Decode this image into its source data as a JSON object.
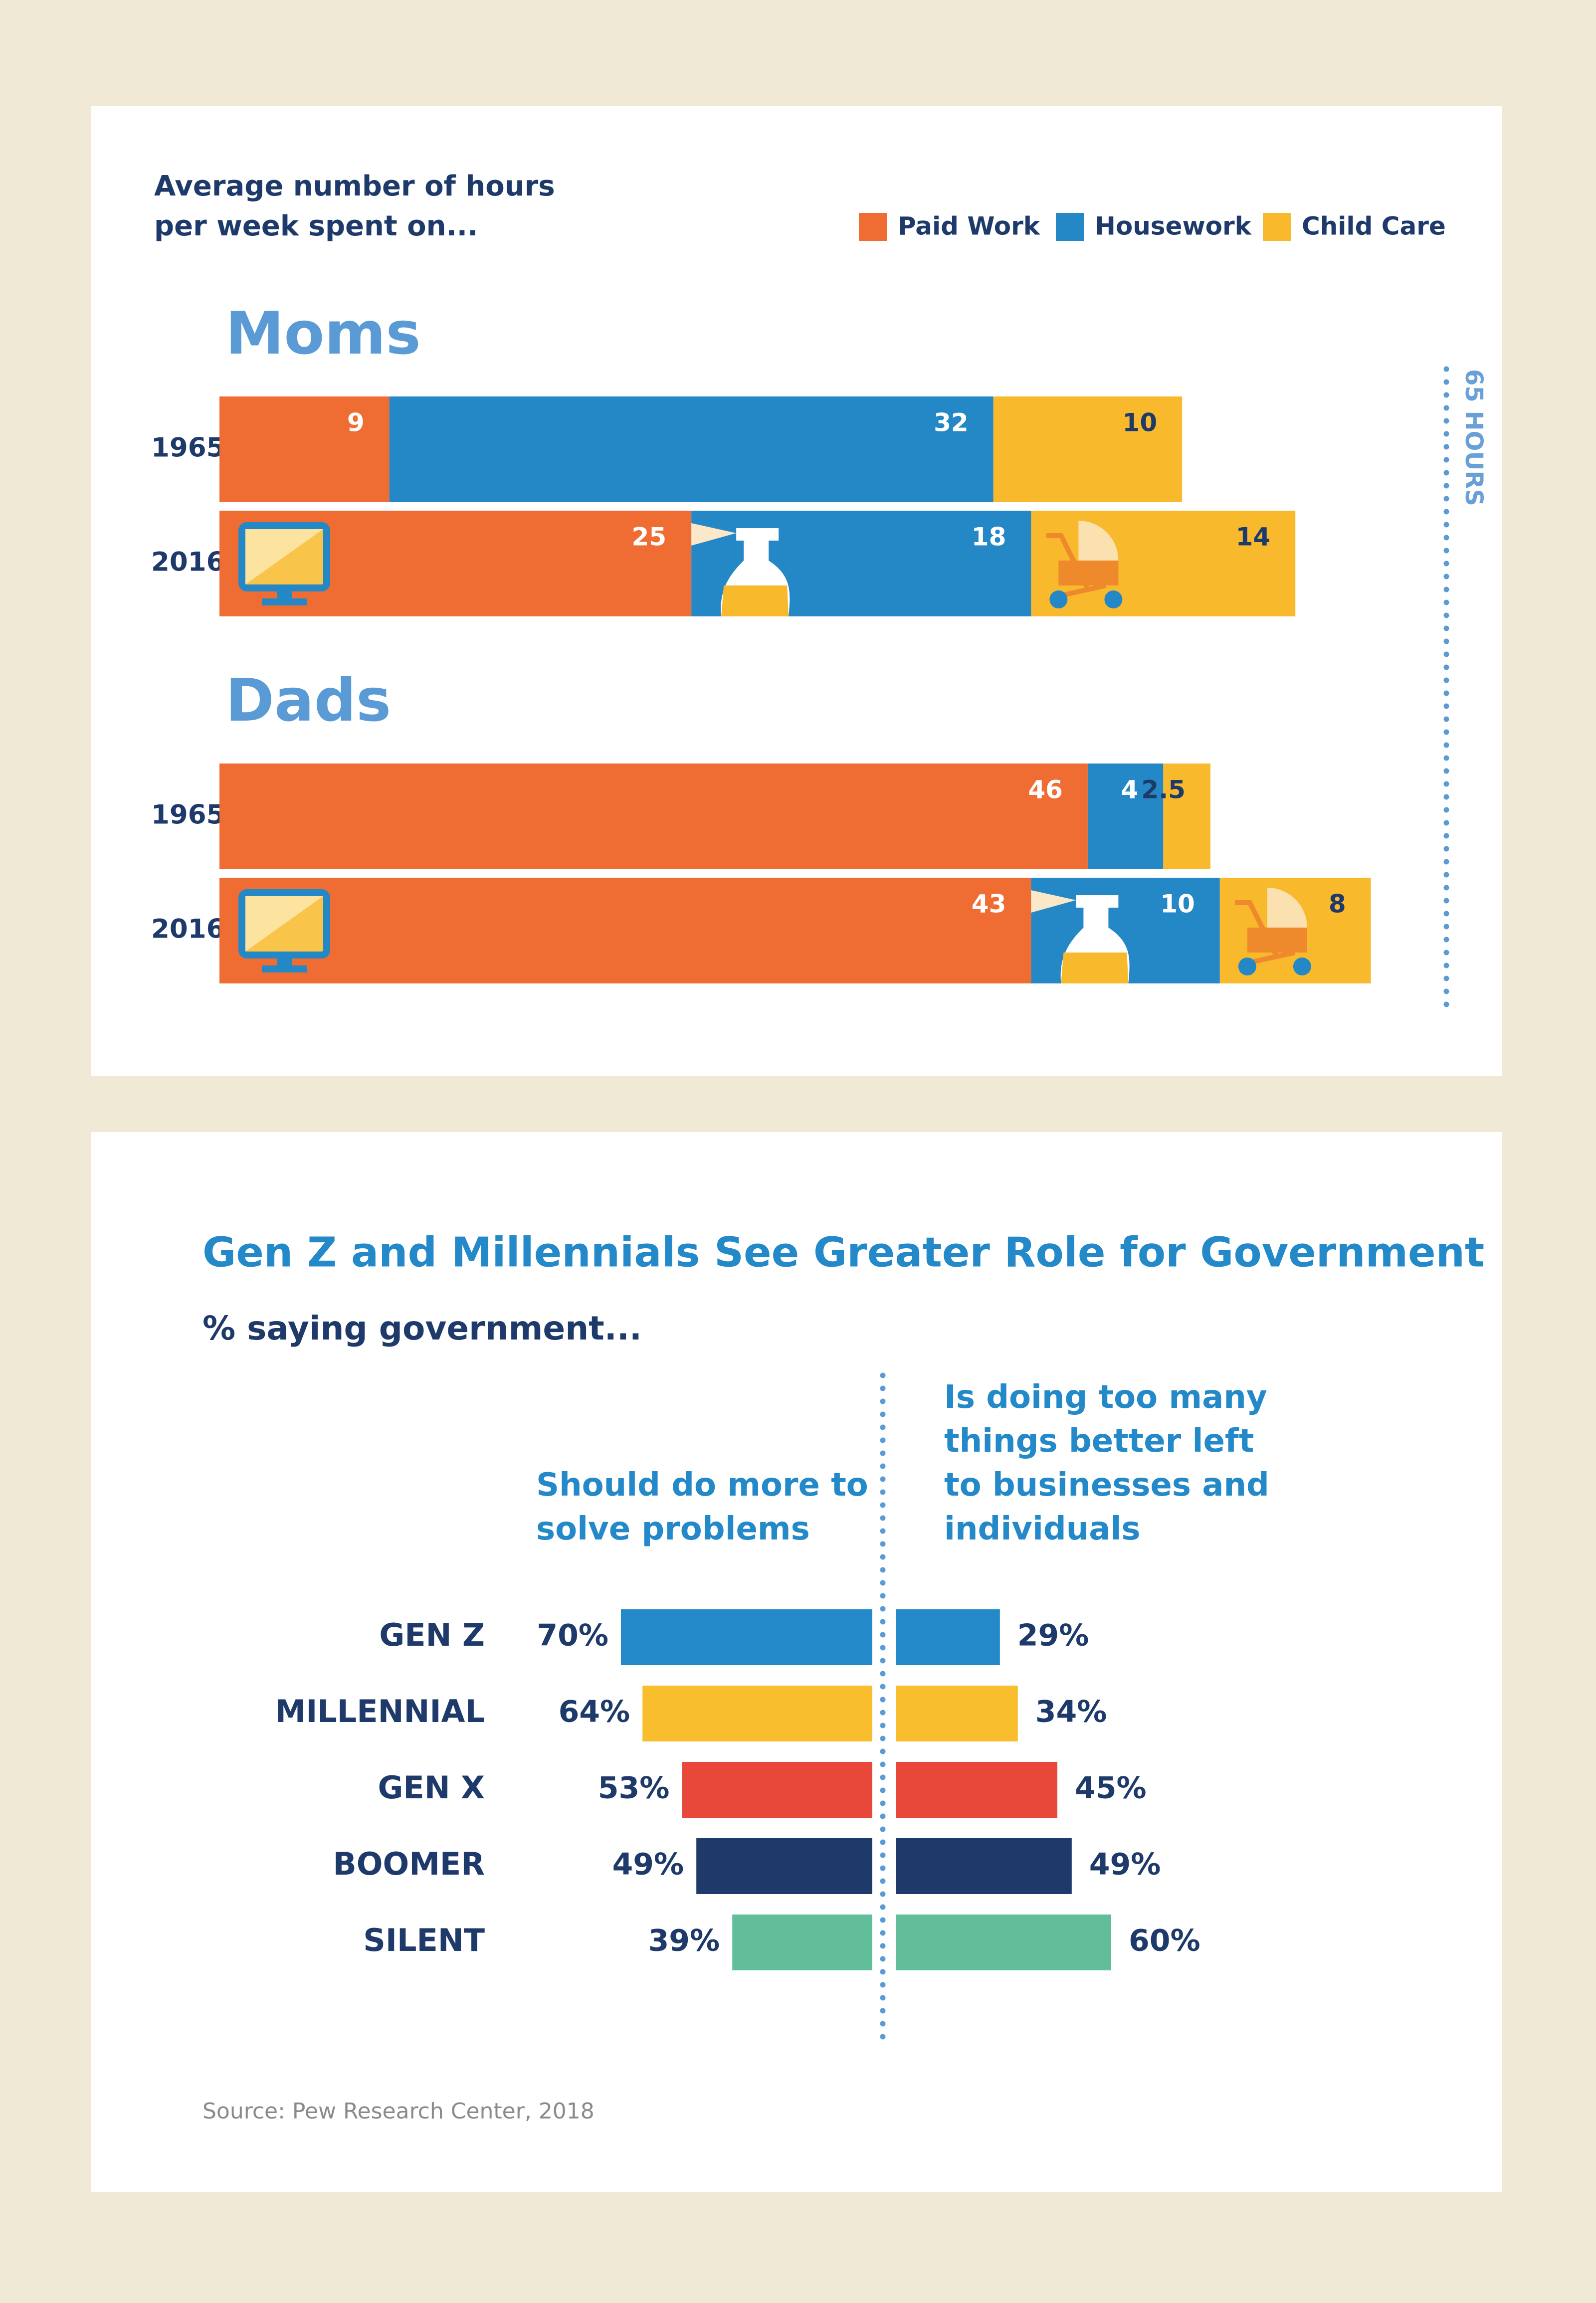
{
  "chart_data": [
    {
      "type": "stacked-bar",
      "title": [
        "Average number of hours",
        "per week spent on..."
      ],
      "series": [
        {
          "name": "Paid Work",
          "color": "#ef6c33"
        },
        {
          "name": "Housework",
          "color": "#2487c6"
        },
        {
          "name": "Child Care",
          "color": "#f8b92d"
        }
      ],
      "panels": [
        {
          "name": "Moms",
          "categories": [
            "1965",
            "2016"
          ],
          "values": [
            [
              9,
              32,
              10
            ],
            [
              25,
              18,
              14
            ]
          ]
        },
        {
          "name": "Dads",
          "categories": [
            "1965",
            "2016"
          ],
          "values": [
            [
              46,
              4,
              2.5
            ],
            [
              43,
              10,
              8
            ]
          ]
        }
      ],
      "xlim": [
        0,
        65
      ],
      "reference": {
        "value": 65,
        "label": "65 HOURS"
      }
    },
    {
      "type": "diverging-bar",
      "title": "Gen Z and Millennials See Greater Role for Government",
      "subtitle": "% saying government...",
      "categories": [
        "GEN Z",
        "MILLENNIAL",
        "GEN X",
        "BOOMER",
        "SILENT"
      ],
      "colors": [
        "#2389c9",
        "#f8be2d",
        "#e8483a",
        "#1e3a6a",
        "#62bd9a"
      ],
      "xlim": [
        0,
        100
      ],
      "series": [
        {
          "name": "Should do more to solve problems",
          "values": [
            70,
            64,
            53,
            49,
            39
          ],
          "value_labels": [
            "70%",
            "64%",
            "53%",
            "49%",
            "39%"
          ]
        },
        {
          "name": "Is doing too many things better left to businesses and individuals",
          "values": [
            29,
            34,
            45,
            49,
            60
          ],
          "value_labels": [
            "29%",
            "34%",
            "45%",
            "49%",
            "60%"
          ]
        }
      ],
      "source": "Source: Pew Research Center, 2018"
    }
  ]
}
